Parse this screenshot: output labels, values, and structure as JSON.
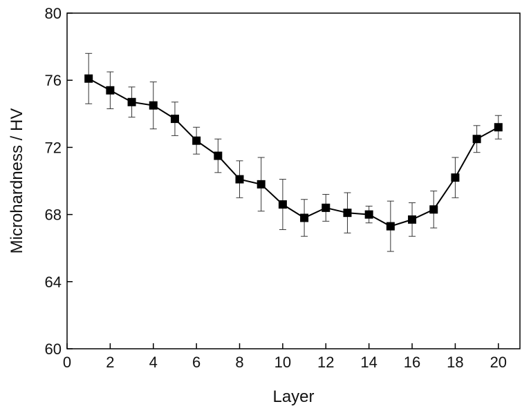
{
  "chart_data": {
    "type": "line",
    "title": "",
    "xlabel": "Layer",
    "ylabel": "Microhardness / HV",
    "xlim": [
      0,
      21
    ],
    "ylim": [
      60,
      80
    ],
    "x_ticks": [
      0,
      2,
      4,
      6,
      8,
      10,
      12,
      14,
      16,
      18,
      20
    ],
    "y_ticks": [
      60,
      64,
      68,
      72,
      76,
      80
    ],
    "grid": false,
    "legend": "none",
    "marker": "square",
    "color": "#000000",
    "series": [
      {
        "x": [
          1,
          2,
          3,
          4,
          5,
          6,
          7,
          8,
          9,
          10,
          11,
          12,
          13,
          14,
          15,
          16,
          17,
          18,
          19,
          20
        ],
        "y": [
          76.1,
          75.4,
          74.7,
          74.5,
          73.7,
          72.4,
          71.5,
          70.1,
          69.8,
          68.6,
          67.8,
          68.4,
          68.1,
          68.0,
          67.3,
          67.7,
          68.3,
          70.2,
          72.5,
          73.2
        ],
        "error": [
          1.5,
          1.1,
          0.9,
          1.4,
          1.0,
          0.8,
          1.0,
          1.1,
          1.6,
          1.5,
          1.1,
          0.8,
          1.2,
          0.5,
          1.5,
          1.0,
          1.1,
          1.2,
          0.8,
          0.7
        ]
      }
    ]
  }
}
